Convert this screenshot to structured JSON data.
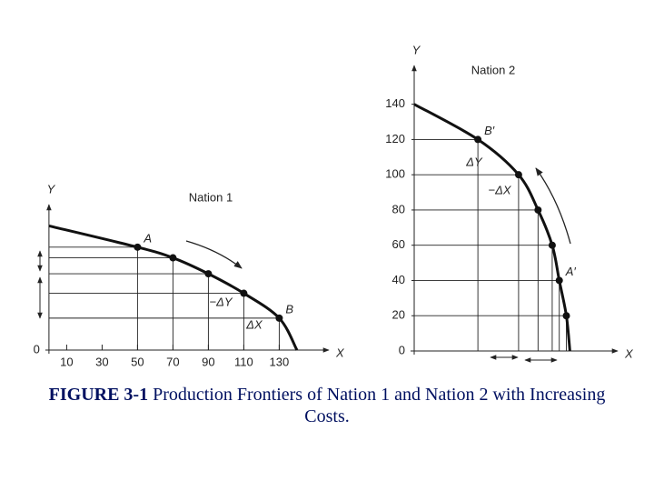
{
  "chart_data": [
    {
      "type": "line",
      "title": "Nation 1",
      "x_label": "X",
      "y_label": "Y",
      "xlim": [
        -2,
        158
      ],
      "ylim": [
        0,
        82
      ],
      "xticks": [
        10,
        30,
        50,
        70,
        90,
        110,
        130
      ],
      "yticks": [
        0
      ],
      "frontier": {
        "x": [
          0,
          50,
          70,
          90,
          110,
          130,
          140
        ],
        "values": [
          70,
          58,
          52,
          43,
          32,
          18,
          0
        ]
      },
      "points": {
        "x": [
          50,
          70,
          90,
          110,
          130
        ],
        "values": [
          58,
          52,
          43,
          32,
          18
        ],
        "labels": [
          "A",
          null,
          null,
          null,
          "B"
        ]
      },
      "annotations": [
        "−ΔY",
        "ΔX"
      ]
    },
    {
      "type": "line",
      "title": "Nation 2",
      "x_label": "X",
      "y_label": "Y",
      "xlim": [
        0,
        115
      ],
      "ylim": [
        0,
        162
      ],
      "yticks": [
        0,
        20,
        40,
        60,
        80,
        100,
        120,
        140
      ],
      "frontier": {
        "x": [
          0,
          36,
          59,
          70,
          78,
          82,
          86,
          88
        ],
        "values": [
          140,
          120,
          100,
          80,
          60,
          40,
          20,
          0
        ]
      },
      "points": {
        "x": [
          36,
          59,
          70,
          78,
          82,
          86
        ],
        "values": [
          120,
          100,
          80,
          60,
          40,
          20
        ],
        "labels": [
          "B′",
          null,
          null,
          null,
          "A′",
          null
        ]
      },
      "annotations": [
        "ΔY",
        "−ΔX"
      ]
    }
  ],
  "caption": {
    "label": "FIGURE 3-1",
    "text": "Production Frontiers of Nation 1 and Nation 2 with Increasing Costs."
  }
}
